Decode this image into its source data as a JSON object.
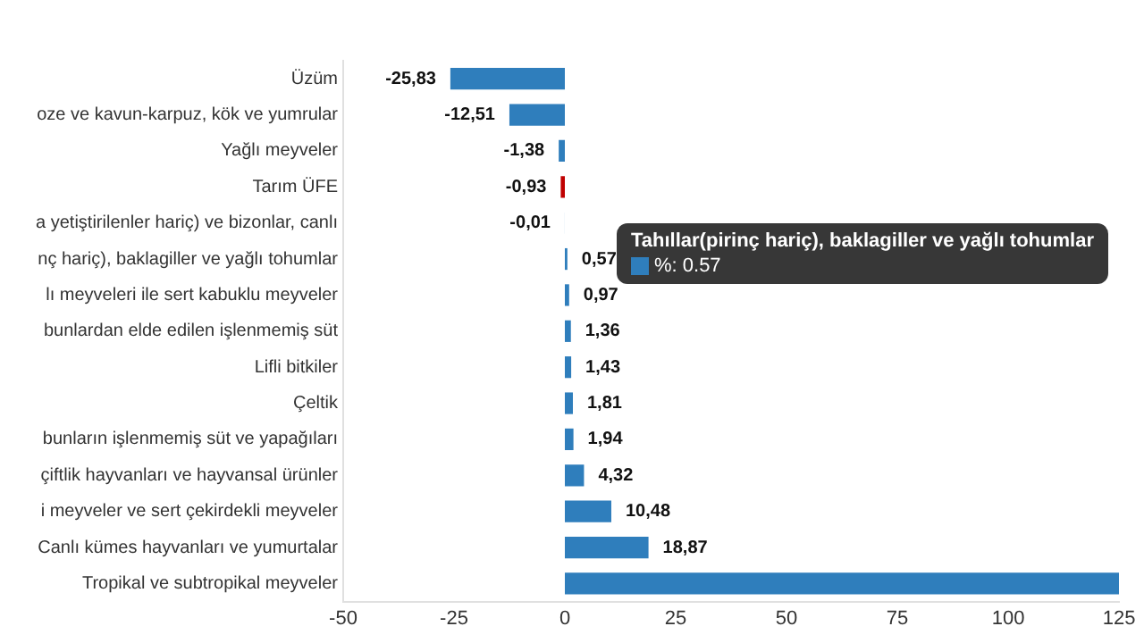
{
  "chart_data": {
    "type": "bar",
    "orientation": "horizontal",
    "categories": [
      "Üzüm",
      "oze ve kavun-karpuz, kök ve yumrular",
      "Yağlı meyveler",
      "Tarım ÜFE",
      "a yetiştirilenler hariç) ve bizonlar, canlı",
      "nç hariç), baklagiller ve yağlı tohumlar",
      "lı meyveleri ile sert kabuklu meyveler",
      "bunlardan elde edilen işlenmemiş süt",
      "Lifli bitkiler",
      "Çeltik",
      "bunların işlenmemiş süt ve yapağıları",
      "çiftlik hayvanları ve hayvansal ürünler",
      "i meyveler ve sert çekirdekli meyveler",
      "Canlı kümes hayvanları ve yumurtalar",
      "Tropikal ve subtropikal meyveler"
    ],
    "values": [
      -25.83,
      -12.51,
      -1.38,
      -0.93,
      -0.01,
      0.57,
      0.97,
      1.36,
      1.43,
      1.81,
      1.94,
      4.32,
      10.48,
      18.87,
      125
    ],
    "value_labels": [
      "-25,83",
      "-12,51",
      "-1,38",
      "-0,93",
      "-0,01",
      "0,57",
      "0,97",
      "1,36",
      "1,43",
      "1,81",
      "1,94",
      "4,32",
      "10,48",
      "18,87",
      null
    ],
    "colors": [
      "#2f7ebc",
      "#2f7ebc",
      "#2f7ebc",
      "#c00000",
      "#2f7ebc",
      "#2f7ebc",
      "#2f7ebc",
      "#2f7ebc",
      "#2f7ebc",
      "#2f7ebc",
      "#2f7ebc",
      "#2f7ebc",
      "#2f7ebc",
      "#2f7ebc",
      "#2f7ebc"
    ],
    "xlim": [
      -50,
      125
    ],
    "xticks": [
      -50,
      -25,
      0,
      25,
      50,
      75,
      100,
      125
    ],
    "grid": false,
    "legend": false,
    "annotations": [
      "Tahıllar(pirinç hariç), baklagiller ve yağlı tohumlar",
      "%: 0.57"
    ]
  }
}
